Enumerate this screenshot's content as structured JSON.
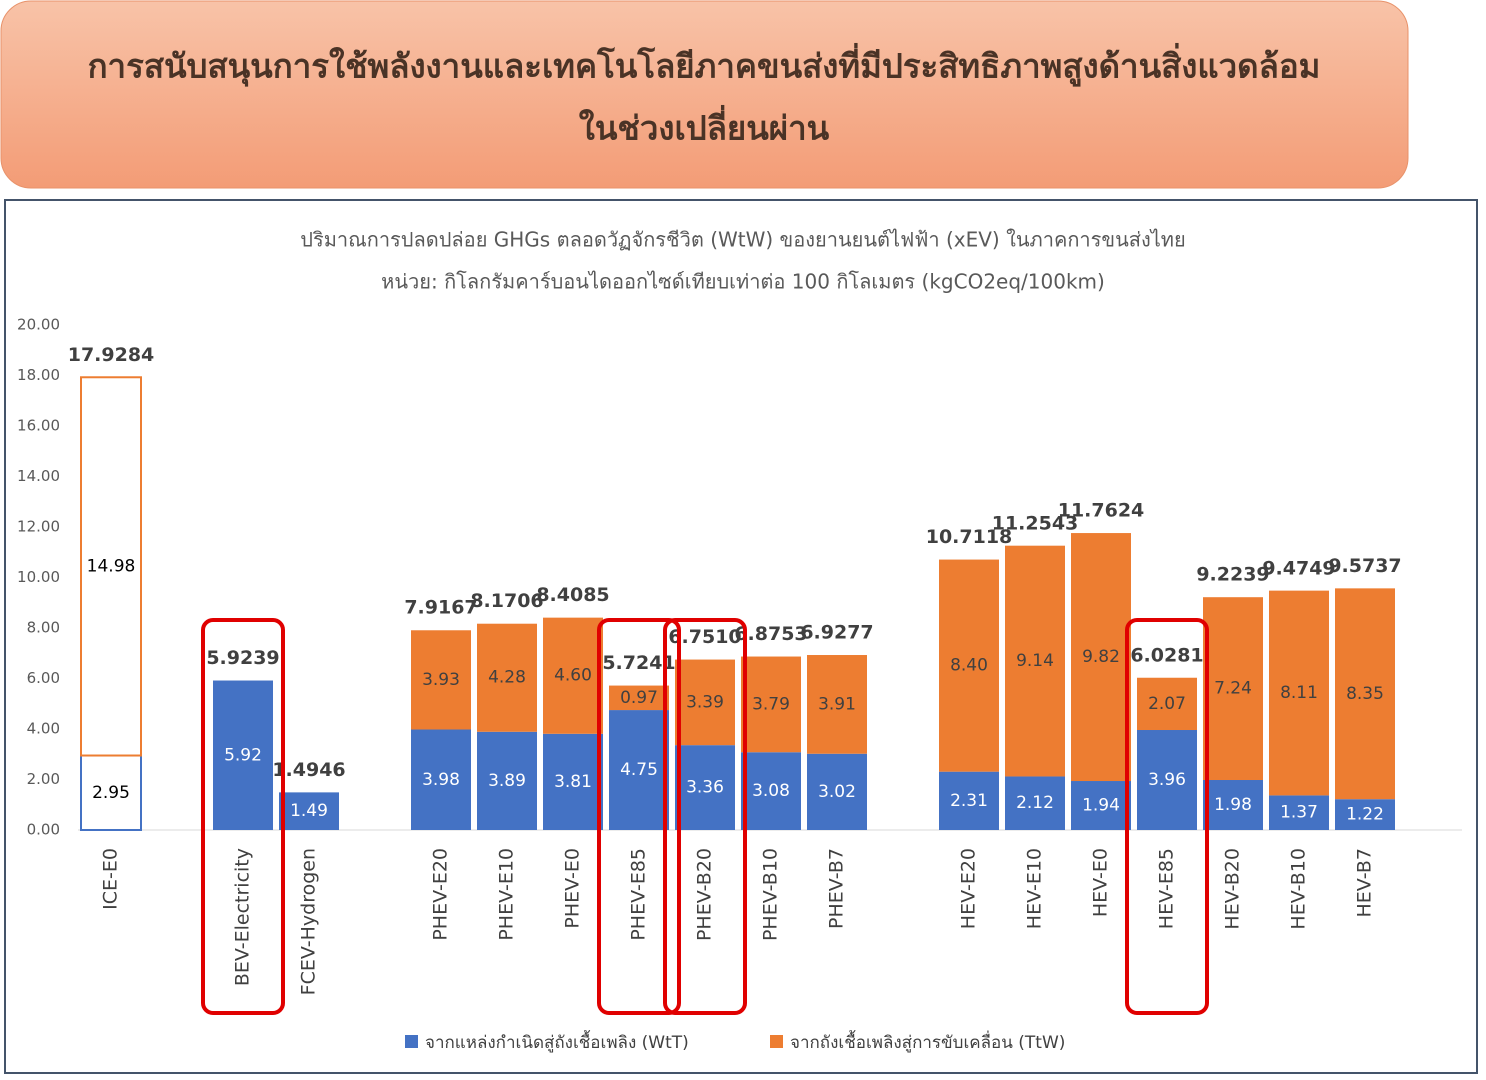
{
  "header": {
    "title_lines": [
      "การสนับสนุนการใช้พลังงานและเทคโนโลยีภาคขนส่งที่มีประสิทธิภาพสูงด้านสิ่งแวดล้อม",
      "ในช่วงเปลี่ยนผ่าน"
    ]
  },
  "chart_data": {
    "type": "stacked_bar",
    "title_lines": [
      "ปริมาณการปลดปล่อย GHGs ตลอดวัฏจักรชีวิต (WtW) ของยานยนต์ไฟฟ้า (xEV) ในภาคการขนส่งไทย",
      "หน่วย: กิโลกรัมคาร์บอนไดออกไซด์เทียบเท่าต่อ 100 กิโลเมตร (kgCO2eq/100km)"
    ],
    "categories": [
      "ICE-E0",
      null,
      "BEV-Electricity",
      "FCEV-Hydrogen",
      null,
      "PHEV-E20",
      "PHEV-E10",
      "PHEV-E0",
      "PHEV-E85",
      "PHEV-B20",
      "PHEV-B10",
      "PHEV-B7",
      null,
      "HEV-E20",
      "HEV-E10",
      "HEV-E0",
      "HEV-E85",
      "HEV-B20",
      "HEV-B10",
      "HEV-B7"
    ],
    "series": [
      {
        "name": "จากแหล่งกำเนิดสู่ถังเชื้อเพลิง  (WtT)",
        "color": "#4472c4",
        "values": [
          2.95,
          null,
          5.92,
          1.49,
          null,
          3.98,
          3.89,
          3.81,
          4.75,
          3.36,
          3.08,
          3.02,
          null,
          2.31,
          2.12,
          1.94,
          3.96,
          1.98,
          1.37,
          1.22
        ],
        "value_labels": [
          "2.95",
          null,
          "5.92",
          "1.49",
          null,
          "3.98",
          "3.89",
          "3.81",
          "4.75",
          "3.36",
          "3.08",
          "3.02",
          null,
          "2.31",
          "2.12",
          "1.94",
          "3.96",
          "1.98",
          "1.37",
          "1.22"
        ]
      },
      {
        "name": "จากถังเชื้อเพลิงสู่การขับเคลื่อน  (TtW)",
        "color": "#ed7d31",
        "values": [
          14.98,
          null,
          null,
          null,
          null,
          3.93,
          4.28,
          4.6,
          0.97,
          3.39,
          3.79,
          3.91,
          null,
          8.4,
          9.14,
          9.82,
          2.07,
          7.24,
          8.11,
          8.35
        ],
        "value_labels": [
          "14.98",
          null,
          null,
          null,
          null,
          "3.93",
          "4.28",
          "4.60",
          "0.97",
          "3.39",
          "3.79",
          "3.91",
          null,
          "8.40",
          "9.14",
          "9.82",
          "2.07",
          "7.24",
          "8.11",
          "8.35"
        ]
      }
    ],
    "totals": {
      "values": [
        17.9284,
        null,
        5.9239,
        1.4946,
        null,
        7.9167,
        8.1706,
        8.4085,
        5.7241,
        6.751,
        6.8753,
        6.9277,
        null,
        10.7118,
        11.2543,
        11.7624,
        6.0281,
        9.2239,
        9.4749,
        9.5737
      ],
      "value_labels": [
        "17.9284",
        null,
        "5.9239",
        "1.4946",
        null,
        "7.9167",
        "8.1706",
        "8.4085",
        "5.7241",
        "6.7510",
        "6.8753",
        "6.9277",
        null,
        "10.7118",
        "11.2543",
        "11.7624",
        "6.0281",
        "9.2239",
        "9.4749",
        "9.5737"
      ]
    },
    "outlined_points": [
      0
    ],
    "highlighted_categories": [
      2,
      8,
      9,
      16
    ],
    "ylim": [
      0,
      20
    ],
    "yticks": [
      {
        "value": 0,
        "label": "0.00"
      },
      {
        "value": 2,
        "label": "2.00"
      },
      {
        "value": 4,
        "label": "4.00"
      },
      {
        "value": 6,
        "label": "6.00"
      },
      {
        "value": 8,
        "label": "8.00"
      },
      {
        "value": 10,
        "label": "10.00"
      },
      {
        "value": 12,
        "label": "12.00"
      },
      {
        "value": 14,
        "label": "14.00"
      },
      {
        "value": 16,
        "label": "16.00"
      },
      {
        "value": 18,
        "label": "18.00"
      },
      {
        "value": 20,
        "label": "20.00"
      }
    ],
    "legend": "bottom"
  }
}
